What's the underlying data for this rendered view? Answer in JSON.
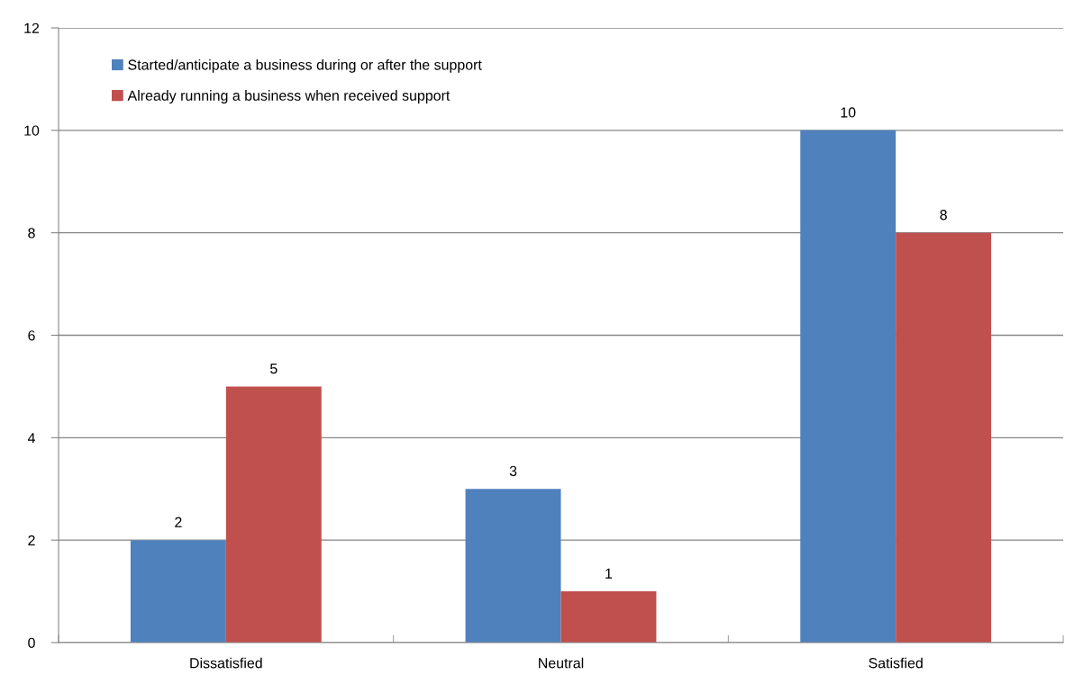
{
  "chart_data": {
    "type": "bar",
    "categories": [
      "Dissatisfied",
      "Neutral",
      "Satisfied"
    ],
    "series": [
      {
        "name": "Started/anticipate a business during or after the support",
        "color": "#4f81bd",
        "values": [
          2,
          3,
          10
        ]
      },
      {
        "name": "Already running a business when received support",
        "color": "#c0504d",
        "values": [
          5,
          1,
          8
        ]
      }
    ],
    "ylim": [
      0,
      12
    ],
    "yticks": [
      0,
      2,
      4,
      6,
      8,
      10,
      12
    ],
    "grid": "y",
    "legend": "top left",
    "data_labels": true
  }
}
